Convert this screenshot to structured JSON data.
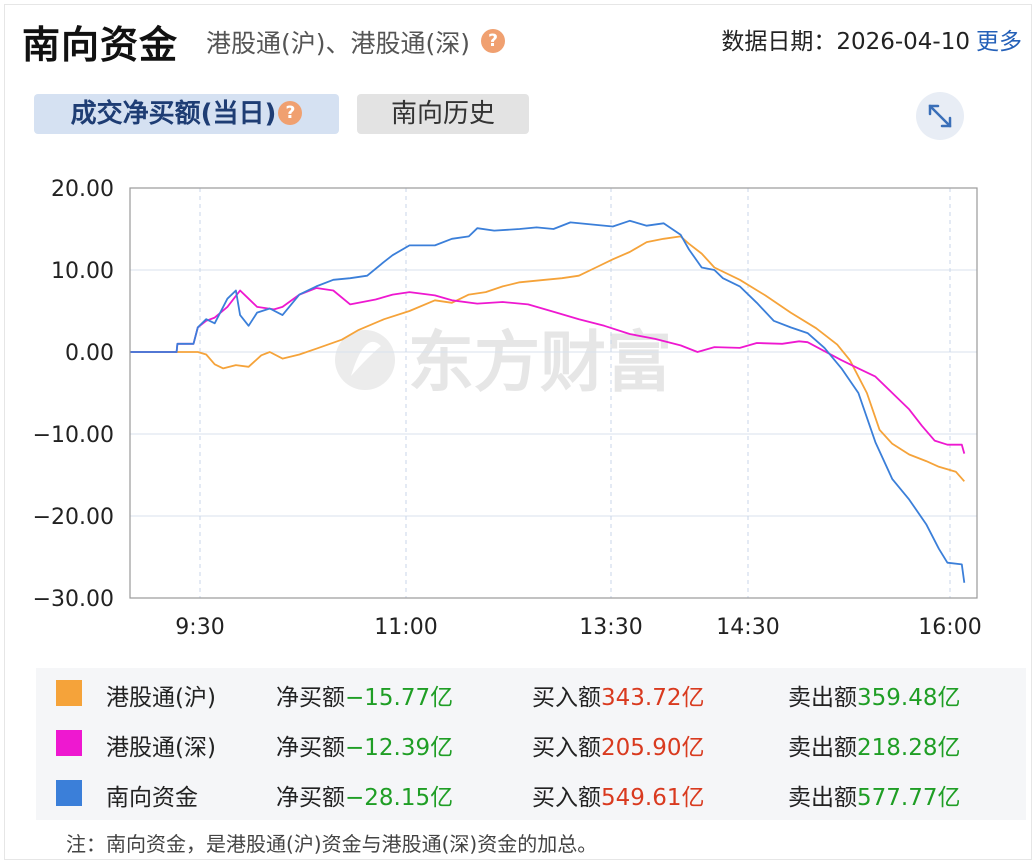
{
  "header": {
    "title": "南向资金",
    "subtitle": "港股通(沪)、港股通(深)",
    "help_glyph": "?",
    "date_label": "数据日期：",
    "date_value": "2026-04-10",
    "more_link": "更多"
  },
  "tabs": [
    {
      "label": "成交净买额(当日)",
      "active": true
    },
    {
      "label": "南向历史",
      "active": false
    }
  ],
  "icons": {
    "expand": "expand-arrows-icon",
    "help": "question-icon"
  },
  "watermark": "东方财富",
  "chart_data": {
    "type": "line",
    "ylim": [
      -30,
      20
    ],
    "yticks": [
      "20.00",
      "10.00",
      "0.00",
      "−10.00",
      "−20.00",
      "−30.00"
    ],
    "ytick_values": [
      20,
      10,
      0,
      -10,
      -20,
      -30
    ],
    "xticks": [
      "9:30",
      "11:00",
      "13:30",
      "14:30",
      "16:00"
    ],
    "grid": true,
    "series": [
      {
        "name": "港股通(沪)",
        "color": "#f5a33a",
        "points": [
          [
            0,
            0
          ],
          [
            0.08,
            0
          ],
          [
            0.09,
            -0.3
          ],
          [
            0.1,
            -1.5
          ],
          [
            0.11,
            -2.0
          ],
          [
            0.125,
            -1.6
          ],
          [
            0.14,
            -1.8
          ],
          [
            0.155,
            -0.4
          ],
          [
            0.165,
            0
          ],
          [
            0.18,
            -0.8
          ],
          [
            0.2,
            -0.3
          ],
          [
            0.22,
            0.4
          ],
          [
            0.25,
            1.5
          ],
          [
            0.27,
            2.7
          ],
          [
            0.3,
            4.0
          ],
          [
            0.33,
            5.0
          ],
          [
            0.36,
            6.3
          ],
          [
            0.38,
            6.0
          ],
          [
            0.4,
            7.0
          ],
          [
            0.42,
            7.3
          ],
          [
            0.44,
            8.0
          ],
          [
            0.46,
            8.5
          ],
          [
            0.49,
            8.8
          ],
          [
            0.51,
            9.0
          ],
          [
            0.53,
            9.3
          ],
          [
            0.55,
            10.3
          ],
          [
            0.57,
            11.3
          ],
          [
            0.59,
            12.2
          ],
          [
            0.61,
            13.4
          ],
          [
            0.63,
            13.8
          ],
          [
            0.65,
            14.1
          ],
          [
            0.66,
            13.2
          ],
          [
            0.675,
            12.0
          ],
          [
            0.69,
            10.3
          ],
          [
            0.72,
            8.8
          ],
          [
            0.75,
            6.9
          ],
          [
            0.78,
            4.8
          ],
          [
            0.81,
            2.9
          ],
          [
            0.835,
            0.9
          ],
          [
            0.85,
            -1.0
          ],
          [
            0.87,
            -5.0
          ],
          [
            0.885,
            -9.5
          ],
          [
            0.9,
            -11.2
          ],
          [
            0.92,
            -12.5
          ],
          [
            0.94,
            -13.3
          ],
          [
            0.955,
            -14.0
          ],
          [
            0.975,
            -14.6
          ],
          [
            0.985,
            -15.77
          ]
        ]
      },
      {
        "name": "港股通(深)",
        "color": "#ee18d0",
        "points": [
          [
            0,
            0
          ],
          [
            0.055,
            0
          ],
          [
            0.056,
            1.0
          ],
          [
            0.075,
            1.0
          ],
          [
            0.08,
            3.0
          ],
          [
            0.09,
            3.8
          ],
          [
            0.1,
            4.2
          ],
          [
            0.115,
            5.5
          ],
          [
            0.13,
            7.5
          ],
          [
            0.14,
            6.5
          ],
          [
            0.15,
            5.5
          ],
          [
            0.17,
            5.2
          ],
          [
            0.18,
            5.5
          ],
          [
            0.2,
            7.0
          ],
          [
            0.22,
            7.8
          ],
          [
            0.24,
            7.5
          ],
          [
            0.26,
            5.8
          ],
          [
            0.29,
            6.4
          ],
          [
            0.31,
            7.0
          ],
          [
            0.33,
            7.3
          ],
          [
            0.36,
            6.9
          ],
          [
            0.38,
            6.3
          ],
          [
            0.41,
            5.9
          ],
          [
            0.44,
            6.1
          ],
          [
            0.47,
            5.8
          ],
          [
            0.5,
            4.9
          ],
          [
            0.53,
            4.0
          ],
          [
            0.56,
            3.2
          ],
          [
            0.59,
            2.2
          ],
          [
            0.62,
            1.6
          ],
          [
            0.65,
            0.8
          ],
          [
            0.67,
            0
          ],
          [
            0.69,
            0.6
          ],
          [
            0.72,
            0.5
          ],
          [
            0.74,
            1.1
          ],
          [
            0.77,
            1.0
          ],
          [
            0.79,
            1.3
          ],
          [
            0.8,
            1.2
          ],
          [
            0.82,
            0.1
          ],
          [
            0.84,
            -1.0
          ],
          [
            0.86,
            -2.0
          ],
          [
            0.88,
            -3.0
          ],
          [
            0.9,
            -5.0
          ],
          [
            0.92,
            -7.0
          ],
          [
            0.935,
            -9.0
          ],
          [
            0.95,
            -10.8
          ],
          [
            0.965,
            -11.3
          ],
          [
            0.982,
            -11.3
          ],
          [
            0.985,
            -12.39
          ]
        ]
      },
      {
        "name": "南向资金",
        "color": "#3b7fd9",
        "points": [
          [
            0,
            0
          ],
          [
            0.055,
            0
          ],
          [
            0.056,
            1.0
          ],
          [
            0.075,
            1.0
          ],
          [
            0.08,
            3.0
          ],
          [
            0.09,
            4.0
          ],
          [
            0.1,
            3.5
          ],
          [
            0.115,
            6.5
          ],
          [
            0.125,
            7.5
          ],
          [
            0.13,
            4.5
          ],
          [
            0.14,
            3.2
          ],
          [
            0.15,
            4.8
          ],
          [
            0.165,
            5.3
          ],
          [
            0.18,
            4.5
          ],
          [
            0.2,
            7.0
          ],
          [
            0.22,
            8.0
          ],
          [
            0.24,
            8.8
          ],
          [
            0.26,
            9.0
          ],
          [
            0.28,
            9.3
          ],
          [
            0.3,
            11.0
          ],
          [
            0.31,
            11.8
          ],
          [
            0.33,
            13.0
          ],
          [
            0.36,
            13.0
          ],
          [
            0.38,
            13.8
          ],
          [
            0.4,
            14.1
          ],
          [
            0.41,
            15.1
          ],
          [
            0.43,
            14.8
          ],
          [
            0.46,
            15.0
          ],
          [
            0.48,
            15.2
          ],
          [
            0.5,
            15.0
          ],
          [
            0.52,
            15.8
          ],
          [
            0.55,
            15.5
          ],
          [
            0.57,
            15.3
          ],
          [
            0.59,
            16.0
          ],
          [
            0.61,
            15.4
          ],
          [
            0.63,
            15.7
          ],
          [
            0.65,
            14.3
          ],
          [
            0.66,
            12.5
          ],
          [
            0.675,
            10.3
          ],
          [
            0.69,
            10.0
          ],
          [
            0.7,
            9.0
          ],
          [
            0.72,
            8.0
          ],
          [
            0.74,
            6.0
          ],
          [
            0.76,
            3.8
          ],
          [
            0.78,
            3.0
          ],
          [
            0.8,
            2.3
          ],
          [
            0.82,
            0.5
          ],
          [
            0.84,
            -2.0
          ],
          [
            0.86,
            -5.0
          ],
          [
            0.88,
            -11.0
          ],
          [
            0.9,
            -15.5
          ],
          [
            0.92,
            -18.0
          ],
          [
            0.94,
            -21.0
          ],
          [
            0.955,
            -24.0
          ],
          [
            0.965,
            -25.7
          ],
          [
            0.982,
            -25.9
          ],
          [
            0.985,
            -28.15
          ]
        ]
      }
    ]
  },
  "legend": [
    {
      "name": "港股通(沪)",
      "color": "#f5a33a",
      "net_label": "净买额",
      "net": "−15.77亿",
      "buy_label": "买入额",
      "buy": "343.72亿",
      "sell_label": "卖出额",
      "sell": "359.48亿"
    },
    {
      "name": "港股通(深)",
      "color": "#ee18d0",
      "net_label": "净买额",
      "net": "−12.39亿",
      "buy_label": "买入额",
      "buy": "205.90亿",
      "sell_label": "卖出额",
      "sell": "218.28亿"
    },
    {
      "name": "南向资金",
      "color": "#3b7fd9",
      "net_label": "净买额",
      "net": "−28.15亿",
      "buy_label": "买入额",
      "buy": "549.61亿",
      "sell_label": "卖出额",
      "sell": "577.77亿"
    }
  ],
  "note": "注：南向资金，是港股通(沪)资金与港股通(深)资金的加总。"
}
